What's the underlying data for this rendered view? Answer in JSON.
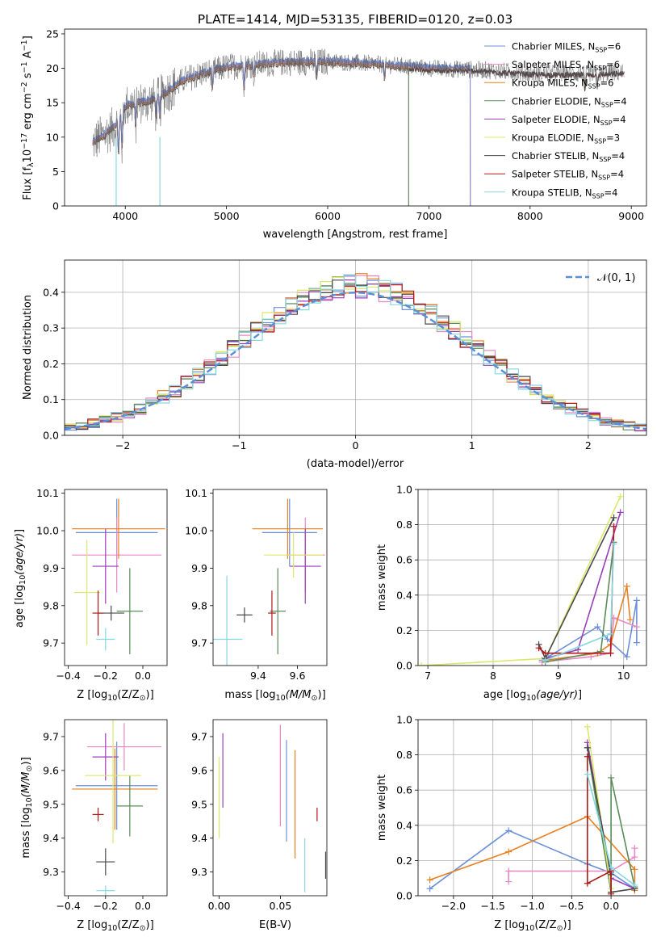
{
  "colors": {
    "Chabrier MILES": "#6b8fd8",
    "Salpeter MILES": "#e887c4",
    "Kroupa MILES": "#e8801e",
    "Chabrier ELODIE": "#5a8c5a",
    "Salpeter ELODIE": "#9b3fb8",
    "Kroupa ELODIE": "#dbe86a",
    "Chabrier STELIB": "#4a4a4a",
    "Salpeter STELIB": "#b01818",
    "Kroupa STELIB": "#86d8df"
  },
  "chart_data": [
    {
      "id": "spectrum",
      "type": "line",
      "title": "PLATE=1414, MJD=53135, FIBERID=0120, z=0.03",
      "xlabel": "wavelength [Angstrom, rest frame]",
      "ylabel": "Flux [f",
      "xlim": [
        3400,
        9150
      ],
      "ylim": [
        0,
        25.7
      ],
      "xticks": [
        4000,
        5000,
        6000,
        7000,
        8000,
        9000
      ],
      "yticks": [
        0,
        5,
        10,
        15,
        20,
        25
      ],
      "legend": [
        "Chabrier MILES, N_SSP=6",
        "Salpeter MILES, N_SSP=6",
        "Kroupa MILES, N_SSP=6",
        "Chabrier ELODIE, N_SSP=4",
        "Salpeter ELODIE, N_SSP=4",
        "Kroupa ELODIE, N_SSP=3",
        "Chabrier STELIB, N_SSP=4",
        "Salpeter STELIB, N_SSP=4",
        "Kroupa STELIB, N_SSP=4"
      ],
      "legend_placement": "top-right",
      "continuum": [
        [
          3680,
          9.2
        ],
        [
          3900,
          11.5
        ],
        [
          4000,
          14.5
        ],
        [
          4300,
          15.5
        ],
        [
          4600,
          18.5
        ],
        [
          5000,
          20.2
        ],
        [
          5500,
          20.8
        ],
        [
          6000,
          21.0
        ],
        [
          6500,
          20.6
        ],
        [
          7000,
          20.0
        ],
        [
          7500,
          19.8
        ],
        [
          8000,
          19.3
        ],
        [
          8500,
          19.2
        ],
        [
          8900,
          19.4
        ]
      ],
      "model_end": {
        "Chabrier MILES": 7410,
        "Salpeter MILES": 7410,
        "Kroupa MILES": 7410,
        "Chabrier ELODIE": 6800,
        "Salpeter ELODIE": 6800,
        "Kroupa ELODIE": 6800,
        "Chabrier STELIB": 8930,
        "Salpeter STELIB": 8930,
        "Kroupa STELIB": 8930
      }
    },
    {
      "id": "residuals",
      "type": "histogram",
      "xlabel": "(data-model)/error",
      "ylabel": "Normed distribution",
      "xlim": [
        -2.5,
        2.5
      ],
      "ylim": [
        0,
        0.49
      ],
      "xticks": [
        -2,
        -1,
        0,
        1,
        2
      ],
      "yticks": [
        0.0,
        0.1,
        0.2,
        0.3,
        0.4
      ],
      "bin_width": 0.1,
      "reference": "N(0,1)",
      "reference_label": "𝒩(0, 1)",
      "grid": true,
      "legend_placement": "top-right"
    },
    {
      "id": "age-vs-Z",
      "type": "errorbar",
      "xlabel": "Z [log",
      "ylabel": "age  [log",
      "xlim": [
        -0.42,
        0.13
      ],
      "ylim": [
        9.64,
        10.11
      ],
      "xticks": [
        -0.4,
        -0.2,
        0.0
      ],
      "yticks": [
        9.7,
        9.8,
        9.9,
        10.0,
        10.1
      ],
      "points": [
        {
          "model": "Chabrier MILES",
          "x": -0.14,
          "y": 9.995,
          "xerr": 0.22,
          "yerr": 0.09
        },
        {
          "model": "Salpeter MILES",
          "x": -0.14,
          "y": 9.935,
          "xerr": 0.24,
          "yerr": 0.1
        },
        {
          "model": "Kroupa MILES",
          "x": -0.13,
          "y": 10.005,
          "xerr": 0.25,
          "yerr": 0.08
        },
        {
          "model": "Chabrier ELODIE",
          "x": -0.07,
          "y": 9.785,
          "xerr": 0.07,
          "yerr": 0.115
        },
        {
          "model": "Salpeter ELODIE",
          "x": -0.2,
          "y": 9.905,
          "xerr": 0.07,
          "yerr": 0.1
        },
        {
          "model": "Kroupa ELODIE",
          "x": -0.3,
          "y": 9.835,
          "xerr": 0.07,
          "yerr": 0.14
        },
        {
          "model": "Chabrier STELIB",
          "x": -0.17,
          "y": 9.78,
          "xerr": 0.07,
          "yerr": 0.02
        },
        {
          "model": "Salpeter STELIB",
          "x": -0.24,
          "y": 9.78,
          "xerr": 0.03,
          "yerr": 0.06
        },
        {
          "model": "Kroupa STELIB",
          "x": -0.2,
          "y": 9.71,
          "xerr": 0.05,
          "yerr": 0.03
        }
      ]
    },
    {
      "id": "age-vs-mass",
      "type": "errorbar",
      "xlabel": "mass [log",
      "xlim": [
        9.17,
        9.75
      ],
      "ylim": [
        9.64,
        10.11
      ],
      "xticks": [
        9.4,
        9.6
      ],
      "yticks": [
        9.7,
        9.8,
        9.9,
        10.0,
        10.1
      ],
      "points": [
        {
          "model": "Chabrier MILES",
          "x": 9.56,
          "y": 9.995,
          "xerr": 0.14,
          "yerr": 0.09
        },
        {
          "model": "Salpeter MILES",
          "x": 9.64,
          "y": 9.935,
          "xerr": 0.1,
          "yerr": 0.1
        },
        {
          "model": "Kroupa MILES",
          "x": 9.55,
          "y": 10.005,
          "xerr": 0.18,
          "yerr": 0.08
        },
        {
          "model": "Chabrier ELODIE",
          "x": 9.5,
          "y": 9.785,
          "xerr": 0.04,
          "yerr": 0.115
        },
        {
          "model": "Salpeter ELODIE",
          "x": 9.64,
          "y": 9.905,
          "xerr": 0.08,
          "yerr": 0.1
        },
        {
          "model": "Kroupa ELODIE",
          "x": 9.58,
          "y": 9.935,
          "xerr": 0.15,
          "yerr": 0.06
        },
        {
          "model": "Chabrier STELIB",
          "x": 9.33,
          "y": 9.775,
          "xerr": 0.04,
          "yerr": 0.02
        },
        {
          "model": "Salpeter STELIB",
          "x": 9.47,
          "y": 9.78,
          "xerr": 0.02,
          "yerr": 0.06
        },
        {
          "model": "Kroupa STELIB",
          "x": 9.24,
          "y": 9.71,
          "xerr": 0.08,
          "yerr": 0.17
        }
      ]
    },
    {
      "id": "mass-weight-vs-age",
      "type": "line",
      "xlabel": "age  [log",
      "ylabel": "mass weight",
      "xlim": [
        6.85,
        10.35
      ],
      "ylim": [
        0,
        1
      ],
      "xticks": [
        7,
        8,
        9,
        10
      ],
      "yticks": [
        0.0,
        0.2,
        0.4,
        0.6,
        0.8,
        1.0
      ],
      "grid": true,
      "series": [
        {
          "model": "Chabrier MILES",
          "x": [
            8.75,
            8.85,
            9.6,
            9.75,
            10.05,
            10.2,
            10.2
          ],
          "y": [
            0.03,
            0.05,
            0.22,
            0.15,
            0.05,
            0.37,
            0.13
          ]
        },
        {
          "model": "Salpeter MILES",
          "x": [
            8.75,
            9.5,
            9.8,
            9.85,
            10.2
          ],
          "y": [
            0.02,
            0.05,
            0.07,
            0.27,
            0.22
          ]
        },
        {
          "model": "Kroupa MILES",
          "x": [
            8.8,
            9.6,
            9.8,
            10.05,
            10.1
          ],
          "y": [
            0.03,
            0.07,
            0.12,
            0.45,
            0.26
          ]
        },
        {
          "model": "Chabrier ELODIE",
          "x": [
            8.8,
            9.65,
            9.85
          ],
          "y": [
            0.02,
            0.08,
            0.7
          ]
        },
        {
          "model": "Salpeter ELODIE",
          "x": [
            8.8,
            9.3,
            9.95
          ],
          "y": [
            0.04,
            0.09,
            0.87
          ]
        },
        {
          "model": "Kroupa ELODIE",
          "x": [
            6.9,
            8.8,
            9.95
          ],
          "y": [
            0.0,
            0.04,
            0.96
          ]
        },
        {
          "model": "Chabrier STELIB",
          "x": [
            8.7,
            8.8,
            9.85
          ],
          "y": [
            0.12,
            0.04,
            0.84
          ]
        },
        {
          "model": "Salpeter STELIB",
          "x": [
            8.7,
            8.8,
            9.8,
            9.85
          ],
          "y": [
            0.1,
            0.07,
            0.07,
            0.79
          ]
        },
        {
          "model": "Kroupa STELIB",
          "x": [
            8.8,
            9.8,
            9.85
          ],
          "y": [
            0.03,
            0.18,
            0.69
          ]
        }
      ]
    },
    {
      "id": "mass-vs-Z",
      "type": "errorbar",
      "xlabel": "Z [log",
      "ylabel": "mass [log",
      "xlim": [
        -0.42,
        0.13
      ],
      "ylim": [
        9.23,
        9.75
      ],
      "xticks": [
        -0.4,
        -0.2,
        0.0
      ],
      "yticks": [
        9.3,
        9.4,
        9.5,
        9.6,
        9.7
      ],
      "points": [
        {
          "model": "Chabrier MILES",
          "x": -0.14,
          "y": 9.555,
          "xerr": 0.22,
          "yerr": 0.13
        },
        {
          "model": "Salpeter MILES",
          "x": -0.1,
          "y": 9.67,
          "xerr": 0.2,
          "yerr": 0.07
        },
        {
          "model": "Kroupa MILES",
          "x": -0.15,
          "y": 9.545,
          "xerr": 0.23,
          "yerr": 0.12
        },
        {
          "model": "Chabrier ELODIE",
          "x": -0.07,
          "y": 9.495,
          "xerr": 0.07,
          "yerr": 0.09
        },
        {
          "model": "Salpeter ELODIE",
          "x": -0.2,
          "y": 9.64,
          "xerr": 0.07,
          "yerr": 0.07
        },
        {
          "model": "Kroupa ELODIE",
          "x": -0.16,
          "y": 9.585,
          "xerr": 0.15,
          "yerr": 0.2
        },
        {
          "model": "Chabrier STELIB",
          "x": -0.2,
          "y": 9.33,
          "xerr": 0.05,
          "yerr": 0.04
        },
        {
          "model": "Salpeter STELIB",
          "x": -0.24,
          "y": 9.47,
          "xerr": 0.03,
          "yerr": 0.02
        },
        {
          "model": "Kroupa STELIB",
          "x": -0.2,
          "y": 9.245,
          "xerr": 0.05,
          "yerr": 0.015
        }
      ]
    },
    {
      "id": "mass-vs-EBV",
      "type": "errorbar",
      "xlabel": "E(B-V)",
      "xlim": [
        -0.005,
        0.088
      ],
      "ylim": [
        9.23,
        9.75
      ],
      "xticks": [
        0.0,
        0.05
      ],
      "yticks": [
        9.3,
        9.4,
        9.5,
        9.6,
        9.7
      ],
      "points": [
        {
          "model": "Chabrier MILES",
          "x": 0.055,
          "y": 9.54,
          "xerr": 0,
          "yerr": 0.15
        },
        {
          "model": "Salpeter MILES",
          "x": 0.05,
          "y": 9.585,
          "xerr": 0,
          "yerr": 0.15
        },
        {
          "model": "Kroupa MILES",
          "x": 0.062,
          "y": 9.5,
          "xerr": 0,
          "yerr": 0.16
        },
        {
          "model": "Salpeter ELODIE",
          "x": 0.003,
          "y": 9.6,
          "xerr": 0,
          "yerr": 0.11
        },
        {
          "model": "Kroupa ELODIE",
          "x": 0.0,
          "y": 9.52,
          "xerr": 0,
          "yerr": 0.12
        },
        {
          "model": "Chabrier STELIB",
          "x": 0.087,
          "y": 9.32,
          "xerr": 0,
          "yerr": 0.04
        },
        {
          "model": "Salpeter STELIB",
          "x": 0.08,
          "y": 9.47,
          "xerr": 0,
          "yerr": 0.02
        },
        {
          "model": "Kroupa STELIB",
          "x": 0.07,
          "y": 9.32,
          "xerr": 0,
          "yerr": 0.08
        }
      ]
    },
    {
      "id": "mass-weight-vs-Z",
      "type": "line",
      "xlabel": "Z [log",
      "ylabel": "mass weight",
      "xlim": [
        -2.45,
        0.45
      ],
      "ylim": [
        0,
        1
      ],
      "xticks": [
        -2.0,
        -1.5,
        -1.0,
        -0.5,
        0.0
      ],
      "yticks": [
        0.0,
        0.2,
        0.4,
        0.6,
        0.8,
        1.0
      ],
      "grid": true,
      "series": [
        {
          "model": "Chabrier MILES",
          "x": [
            -2.3,
            -1.3,
            -0.3,
            0.0,
            0.3
          ],
          "y": [
            0.04,
            0.37,
            0.18,
            0.13,
            0.04
          ]
        },
        {
          "model": "Salpeter MILES",
          "x": [
            -1.3,
            -1.3,
            -0.3,
            0.0,
            0.3,
            0.3
          ],
          "y": [
            0.08,
            0.14,
            0.14,
            0.14,
            0.22,
            0.27
          ]
        },
        {
          "model": "Kroupa MILES",
          "x": [
            -2.3,
            -1.3,
            -0.3,
            0.3,
            0.3
          ],
          "y": [
            0.09,
            0.25,
            0.45,
            0.15,
            0.03
          ]
        },
        {
          "model": "Chabrier ELODIE",
          "x": [
            -0.3,
            0.0,
            0.0,
            0.3
          ],
          "y": [
            0.84,
            0.02,
            0.67,
            0.05
          ]
        },
        {
          "model": "Salpeter ELODIE",
          "x": [
            -0.3,
            0.0,
            0.3
          ],
          "y": [
            0.87,
            0.1,
            0.04
          ]
        },
        {
          "model": "Kroupa ELODIE",
          "x": [
            -0.3,
            0.0
          ],
          "y": [
            0.96,
            0.04
          ]
        },
        {
          "model": "Chabrier STELIB",
          "x": [
            -0.3,
            0.0,
            0.0,
            0.3
          ],
          "y": [
            0.84,
            0.12,
            0.02,
            0.04
          ]
        },
        {
          "model": "Salpeter STELIB",
          "x": [
            -0.3,
            -0.3,
            0.0,
            0.0
          ],
          "y": [
            0.79,
            0.07,
            0.14,
            0.01
          ]
        },
        {
          "model": "Kroupa STELIB",
          "x": [
            -0.3,
            0.0,
            0.3
          ],
          "y": [
            0.69,
            0.16,
            0.06
          ]
        }
      ]
    }
  ]
}
